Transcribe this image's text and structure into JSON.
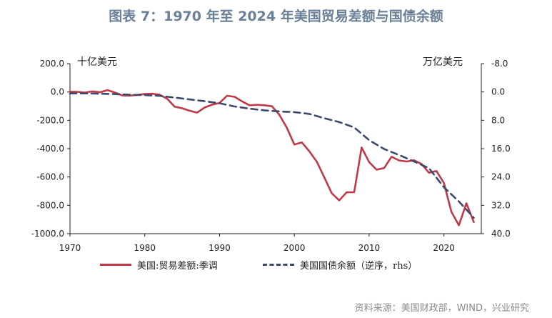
{
  "title": "图表 7：1970 年至 2024 年美国贸易差额与国债余额",
  "source": "资料来源：美国财政部，WIND，兴业研究",
  "chart_data": {
    "type": "line",
    "left_unit": "十亿美元",
    "right_unit": "万亿美元",
    "x_ticks": [
      "1970",
      "1980",
      "1990",
      "2000",
      "2010",
      "2020"
    ],
    "y_left_ticks": [
      "200.0",
      "0.0",
      "-200.0",
      "-400.0",
      "-600.0",
      "-800.0",
      "-1000.0"
    ],
    "y_right_ticks": [
      "-8.0",
      "0.0",
      "8.0",
      "16.0",
      "24.0",
      "32.0",
      "40.0"
    ],
    "ylim_left": [
      -1000,
      200
    ],
    "ylim_right": [
      -8,
      40
    ],
    "right_axis_inverted": true,
    "xlim": [
      1970,
      2025
    ],
    "series": [
      {
        "name": "美国:贸易差额:季调",
        "axis": "left",
        "color": "#c0394a",
        "style": "solid",
        "x": [
          1970,
          1971,
          1972,
          1973,
          1974,
          1975,
          1976,
          1977,
          1978,
          1979,
          1980,
          1981,
          1982,
          1983,
          1984,
          1985,
          1986,
          1987,
          1988,
          1989,
          1990,
          1991,
          1992,
          1993,
          1994,
          1995,
          1996,
          1997,
          1998,
          1999,
          2000,
          2001,
          2002,
          2003,
          2004,
          2005,
          2006,
          2007,
          2008,
          2009,
          2010,
          2011,
          2012,
          2013,
          2014,
          2015,
          2016,
          2017,
          2018,
          2019,
          2020,
          2021,
          2022,
          2023,
          2024
        ],
        "values": [
          2,
          1,
          -4,
          4,
          -2,
          13,
          -4,
          -25,
          -26,
          -21,
          -15,
          -13,
          -20,
          -48,
          -104,
          -115,
          -133,
          -146,
          -110,
          -90,
          -78,
          -27,
          -34,
          -66,
          -94,
          -91,
          -94,
          -101,
          -161,
          -253,
          -371,
          -356,
          -418,
          -492,
          -602,
          -714,
          -765,
          -708,
          -707,
          -392,
          -495,
          -548,
          -537,
          -457,
          -483,
          -491,
          -482,
          -508,
          -570,
          -558,
          -642,
          -845,
          -941,
          -785,
          -918
        ]
      },
      {
        "name": "美国国债余额（逆序，rhs）",
        "axis": "right",
        "color": "#3b4a6b",
        "style": "dashed",
        "x": [
          1970,
          1972,
          1974,
          1976,
          1978,
          1980,
          1982,
          1984,
          1986,
          1988,
          1990,
          1992,
          1994,
          1996,
          1998,
          2000,
          2002,
          2004,
          2006,
          2008,
          2010,
          2012,
          2014,
          2016,
          2018,
          2020,
          2022,
          2024
        ],
        "values": [
          0.4,
          0.4,
          0.5,
          0.6,
          0.8,
          0.9,
          1.1,
          1.6,
          2.1,
          2.6,
          3.2,
          4.1,
          4.7,
          5.2,
          5.5,
          5.7,
          6.2,
          7.4,
          8.5,
          10.0,
          13.6,
          16.1,
          17.8,
          19.6,
          21.5,
          26.9,
          30.9,
          35.5
        ]
      }
    ]
  }
}
